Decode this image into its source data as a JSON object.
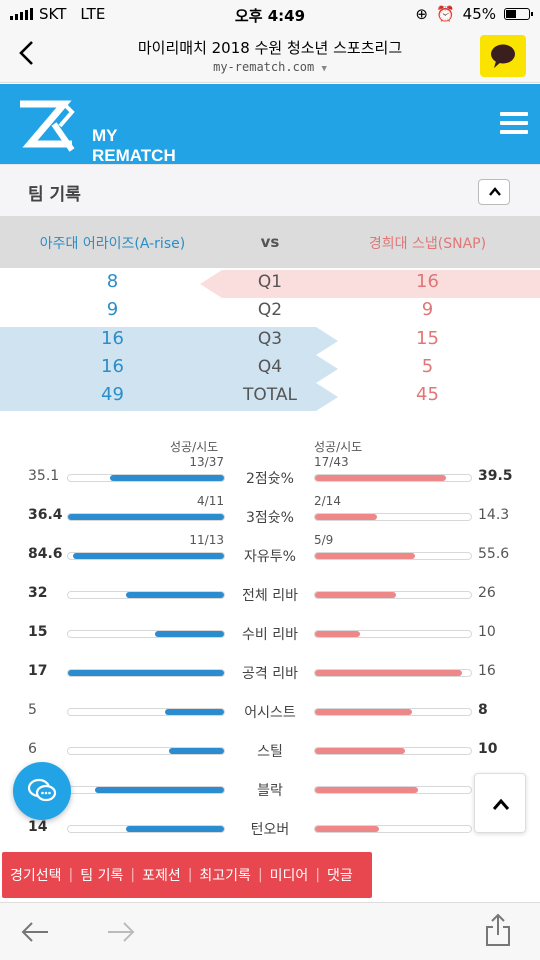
{
  "status": {
    "carrier": "SKT",
    "network": "LTE",
    "time": "오후 4:49",
    "battery": "45%",
    "battery_level": 0.45
  },
  "browser": {
    "title": "마이리매치 2018 수원 청소년 스포츠리그",
    "url": "my-rematch.com"
  },
  "site": {
    "logo_line1": "MY",
    "logo_line2": "REMATCH"
  },
  "section": {
    "title": "팀 기록"
  },
  "teams": {
    "a": "아주대 어라이즈(A-rise)",
    "vs": "vs",
    "b": "경희대 스냅(SNAP)"
  },
  "quarters": [
    {
      "label": "Q1",
      "a": "8",
      "b": "16"
    },
    {
      "label": "Q2",
      "a": "9",
      "b": "9"
    },
    {
      "label": "Q3",
      "a": "16",
      "b": "15"
    },
    {
      "label": "Q4",
      "a": "16",
      "b": "5"
    },
    {
      "label": "TOTAL",
      "a": "49",
      "b": "45"
    }
  ],
  "stats_header": {
    "left": "성공/시도",
    "right": "성공/시도"
  },
  "stats": [
    {
      "name": "2점슛%",
      "a": "35.1",
      "b": "39.5",
      "a_frac": "13/37",
      "b_frac": "17/43",
      "a_fill": 0.73,
      "b_fill": 0.84,
      "winner": "b"
    },
    {
      "name": "3점슛%",
      "a": "36.4",
      "b": "14.3",
      "a_frac": "4/11",
      "b_frac": "2/14",
      "a_fill": 1.0,
      "b_fill": 0.4,
      "winner": "a"
    },
    {
      "name": "자유투%",
      "a": "84.6",
      "b": "55.6",
      "a_frac": "11/13",
      "b_frac": "5/9",
      "a_fill": 0.97,
      "b_fill": 0.64,
      "winner": "a"
    },
    {
      "name": "전체 리바",
      "a": "32",
      "b": "26",
      "a_frac": "",
      "b_frac": "",
      "a_fill": 0.63,
      "b_fill": 0.52,
      "winner": "a"
    },
    {
      "name": "수비 리바",
      "a": "15",
      "b": "10",
      "a_frac": "",
      "b_frac": "",
      "a_fill": 0.44,
      "b_fill": 0.29,
      "winner": "a"
    },
    {
      "name": "공격 리바",
      "a": "17",
      "b": "16",
      "a_frac": "",
      "b_frac": "",
      "a_fill": 1.0,
      "b_fill": 0.94,
      "winner": "a"
    },
    {
      "name": "어시스트",
      "a": "5",
      "b": "8",
      "a_frac": "",
      "b_frac": "",
      "a_fill": 0.38,
      "b_fill": 0.62,
      "winner": "b"
    },
    {
      "name": "스틸",
      "a": "6",
      "b": "10",
      "a_frac": "",
      "b_frac": "",
      "a_fill": 0.35,
      "b_fill": 0.58,
      "winner": "b"
    },
    {
      "name": "블락",
      "a": "",
      "b": "",
      "a_frac": "",
      "b_frac": "",
      "a_fill": 0.83,
      "b_fill": 0.66,
      "winner": ""
    },
    {
      "name": "턴오버",
      "a": "14",
      "b": "",
      "a_frac": "",
      "b_frac": "",
      "a_fill": 0.63,
      "b_fill": 0.41,
      "winner": "a"
    }
  ],
  "tabs": [
    "경기선택",
    "팀 기록",
    "포제션",
    "최고기록",
    "미디어",
    "댓글"
  ],
  "colors": {
    "brand_blue": "#22a3e6",
    "team_a": "#2a8ec8",
    "team_b": "#e07777",
    "tab_bar": "#e8474f",
    "kakao": "#fbe300"
  }
}
